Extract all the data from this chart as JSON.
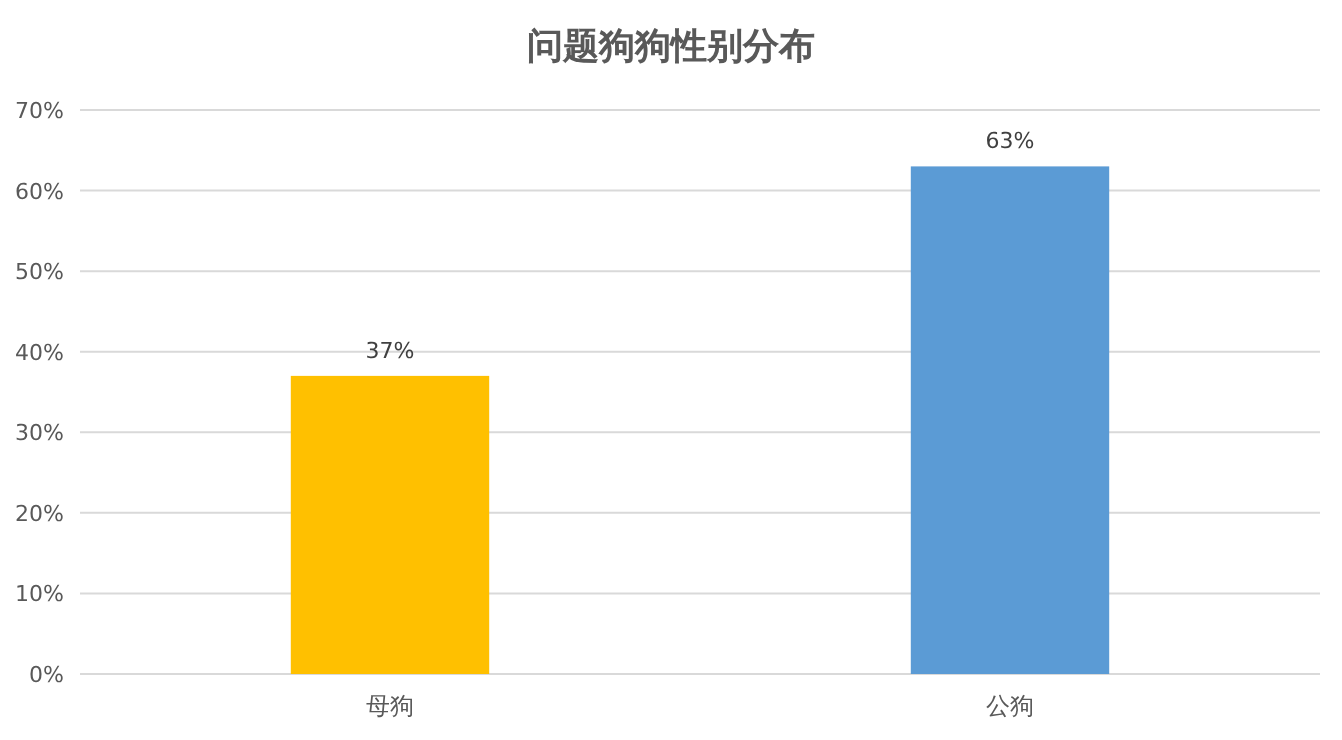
{
  "chart_data": {
    "type": "bar",
    "title": "问题狗狗性别分布",
    "categories": [
      "母狗",
      "公狗"
    ],
    "values": [
      37,
      63
    ],
    "colors": [
      "#ffc000",
      "#5b9bd5"
    ],
    "value_labels": [
      "37%",
      "63%"
    ],
    "ylim": [
      0,
      70
    ],
    "yticks": [
      {
        "value": 0,
        "label": "0%"
      },
      {
        "value": 10,
        "label": "10%"
      },
      {
        "value": 20,
        "label": "20%"
      },
      {
        "value": 30,
        "label": "30%"
      },
      {
        "value": 40,
        "label": "40%"
      },
      {
        "value": 50,
        "label": "50%"
      },
      {
        "value": 60,
        "label": "60%"
      },
      {
        "value": 70,
        "label": "70%"
      }
    ],
    "grid": "y"
  }
}
